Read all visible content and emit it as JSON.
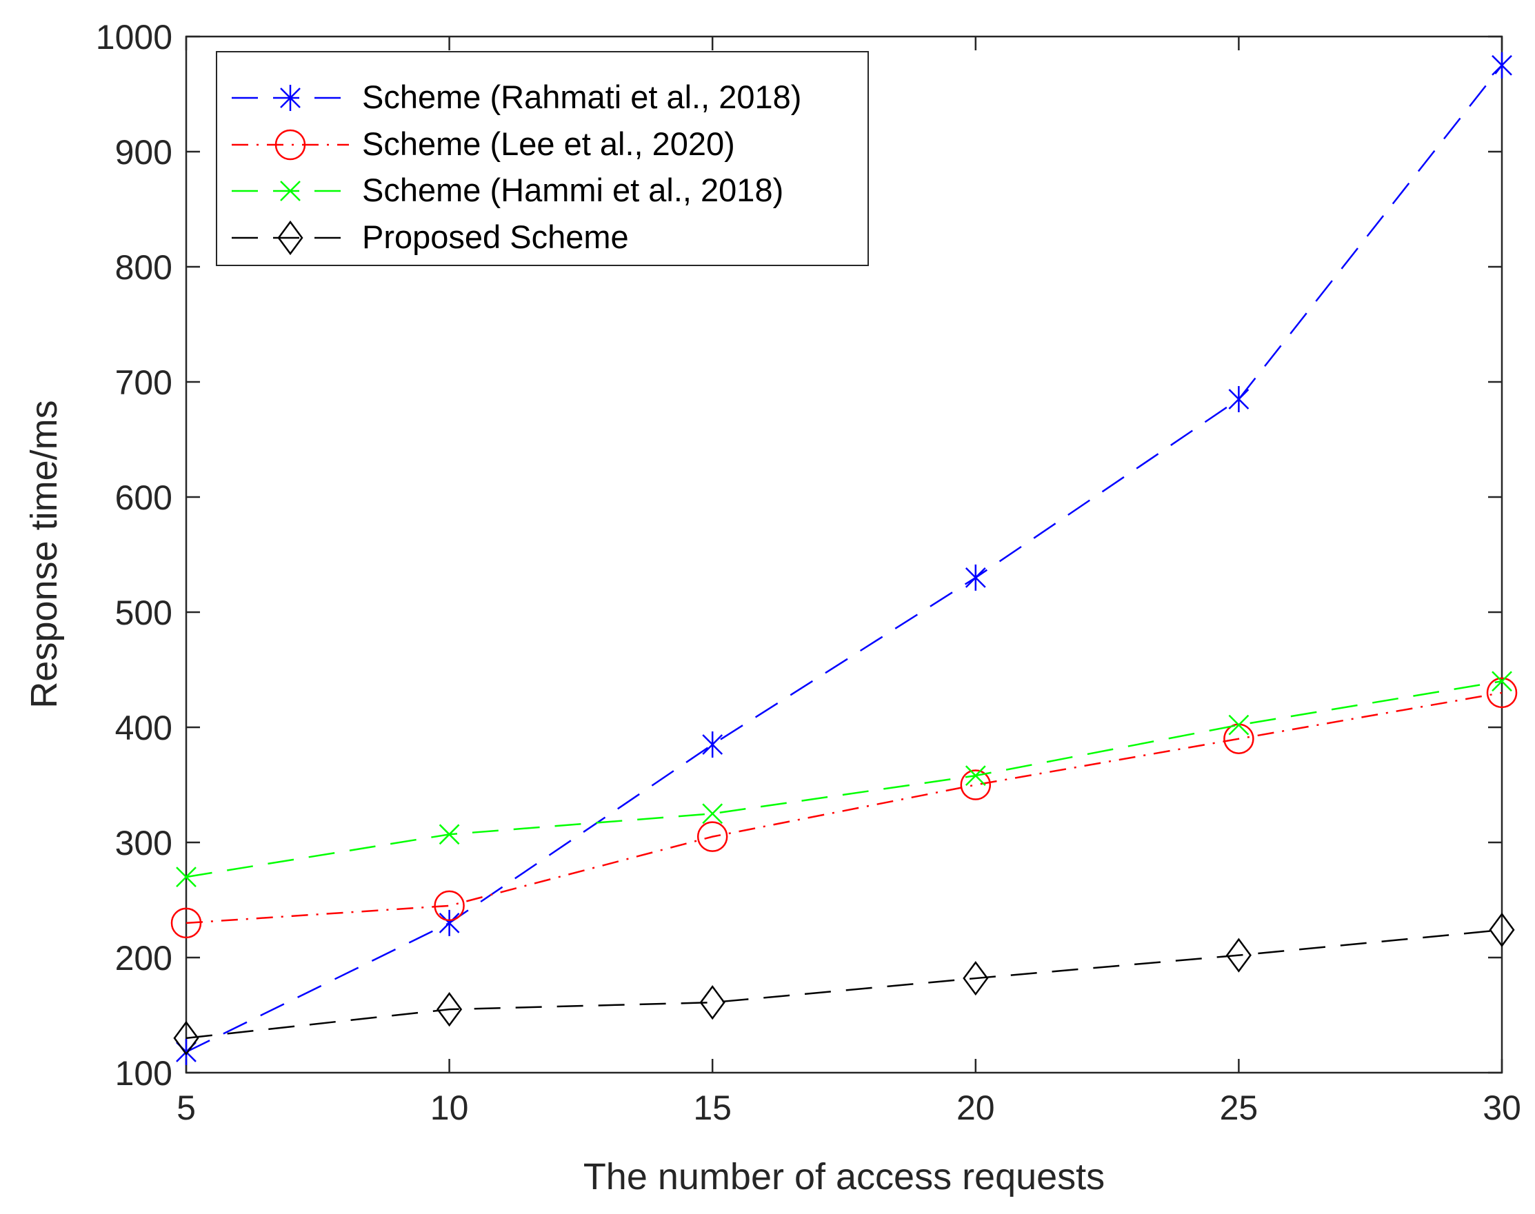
{
  "chart_data": {
    "type": "line",
    "title": "",
    "xlabel": "The number of access requests",
    "ylabel": "Response time/ms",
    "xlim": [
      5,
      30
    ],
    "ylim": [
      100,
      1000
    ],
    "xticks": [
      5,
      10,
      15,
      20,
      25,
      30
    ],
    "yticks": [
      100,
      200,
      300,
      400,
      500,
      600,
      700,
      800,
      900,
      1000
    ],
    "grid": false,
    "legend_position": "top-left",
    "x": [
      5,
      10,
      15,
      20,
      25,
      30
    ],
    "series": [
      {
        "name": "Scheme (Rahmati et al., 2018)",
        "values": [
          118,
          230,
          385,
          530,
          685,
          975
        ],
        "color": "#0000ff",
        "marker": "asterisk",
        "line_style": "dashed"
      },
      {
        "name": "Scheme (Lee et al., 2020)",
        "values": [
          230,
          245,
          305,
          350,
          390,
          430
        ],
        "color": "#ff0000",
        "marker": "circle",
        "line_style": "dash-dot"
      },
      {
        "name": "Scheme (Hammi et al., 2018)",
        "values": [
          270,
          307,
          325,
          358,
          402,
          440
        ],
        "color": "#00ff00",
        "marker": "x",
        "line_style": "dashed"
      },
      {
        "name": "Proposed Scheme",
        "values": [
          130,
          155,
          161,
          182,
          202,
          224
        ],
        "color": "#000000",
        "marker": "diamond",
        "line_style": "dashed"
      }
    ]
  }
}
